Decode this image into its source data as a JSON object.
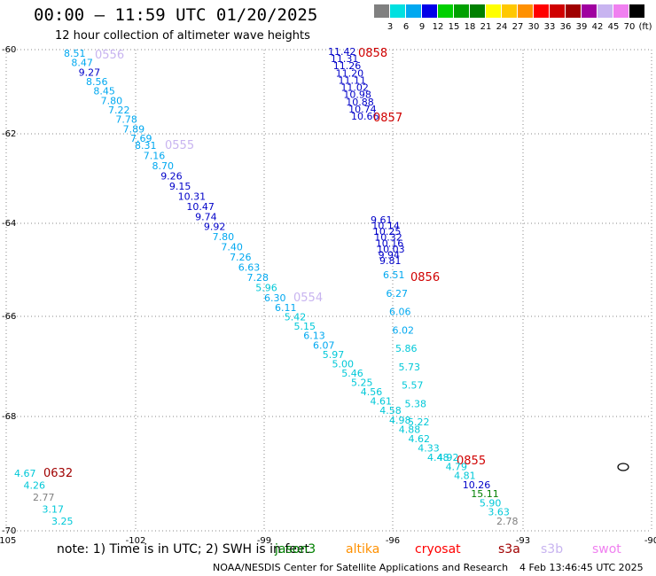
{
  "title": "00:00 – 11:59 UTC 01/20/2025",
  "subtitle": "12 hour collection of altimeter wave heights",
  "legend": {
    "colors": [
      "#808080",
      "#00e0e0",
      "#00a8f0",
      "#0000e8",
      "#00d000",
      "#00a000",
      "#008000",
      "#ffff00",
      "#ffc800",
      "#ff9000",
      "#ff0000",
      "#d00000",
      "#a00000",
      "#a000a0",
      "#c8b4f0",
      "#f080f0",
      "#000000"
    ],
    "ticks": [
      "3",
      "6",
      "9",
      "12",
      "15",
      "18",
      "21",
      "24",
      "27",
      "30",
      "33",
      "36",
      "39",
      "42",
      "45",
      "70",
      "(ft)"
    ]
  },
  "axes": {
    "x_ticks": [
      "-105",
      "-102",
      "-99",
      "-96",
      "-93",
      "-90"
    ],
    "y_ticks": [
      "-60",
      "-62",
      "-64",
      "-66",
      "-68",
      "-70"
    ]
  },
  "passes": [
    {
      "label": "0556",
      "color": "#c8b4f0",
      "values": [
        "8.51",
        "8.47",
        "9.27",
        "8.56",
        "8.45",
        "7.80",
        "7.22",
        "7.78",
        "7.89",
        "7.69"
      ]
    },
    {
      "label": "0555",
      "color": "#c8b4f0",
      "values": [
        "8.31",
        "7.16",
        "8.70",
        "9.26",
        "9.15",
        "10.31",
        "10.47",
        "9.74",
        "9.92",
        "7.80",
        "7.40",
        "7.26",
        "6.63",
        "7.28",
        "5.96",
        "6.30"
      ]
    },
    {
      "label": "0554",
      "color": "#c8b4f0",
      "values": [
        "6.11",
        "5.42",
        "5.15",
        "6.13",
        "6.07",
        "5.97",
        "5.00",
        "5.46",
        "5.25",
        "4.56",
        "4.61",
        "4.58",
        "4.98",
        "4.88",
        "4.62",
        "4.33",
        "4.48"
      ]
    },
    {
      "label": "0858",
      "color": "#d00000",
      "values": [
        "11.42",
        "11.31",
        "11.26",
        "11.20",
        "11.11",
        "11.02",
        "10.98",
        "10.88",
        "10.74",
        "10.66"
      ]
    },
    {
      "label": "0857",
      "color": "#d00000",
      "values": [
        "9.61",
        "10.14",
        "10.25",
        "10.32",
        "10.16",
        "10.03",
        "9.94",
        "9.81"
      ]
    },
    {
      "label": "0856",
      "color": "#d00000",
      "values": [
        "6.51",
        "6.27",
        "6.06",
        "6.02",
        "5.86",
        "5.73",
        "5.57",
        "5.38",
        "5.22"
      ]
    },
    {
      "label": "0855",
      "color": "#d00000",
      "values": [
        "4.92",
        "4.79",
        "4.81",
        "10.26",
        "15.11",
        "5.90",
        "3.63",
        "2.78"
      ]
    },
    {
      "label": "0632",
      "color": "#a00000",
      "values": [
        "4.67",
        "4.26",
        "2.77",
        "3.17",
        "3.25"
      ]
    }
  ],
  "note": "note: 1) Time is in UTC; 2) SWH is in feet",
  "satellites": [
    {
      "name": "jason3",
      "color": "#008000"
    },
    {
      "name": "altika",
      "color": "#ff9000"
    },
    {
      "name": "cryosat",
      "color": "#ff0000"
    },
    {
      "name": "s3a",
      "color": "#a00000"
    },
    {
      "name": "s3b",
      "color": "#c8b4f0"
    },
    {
      "name": "swot",
      "color": "#f080f0"
    }
  ],
  "credit": "NOAA/NESDIS Center for Satellite Applications and Research",
  "timestamp": "4 Feb 13:46:45 UTC 2025"
}
